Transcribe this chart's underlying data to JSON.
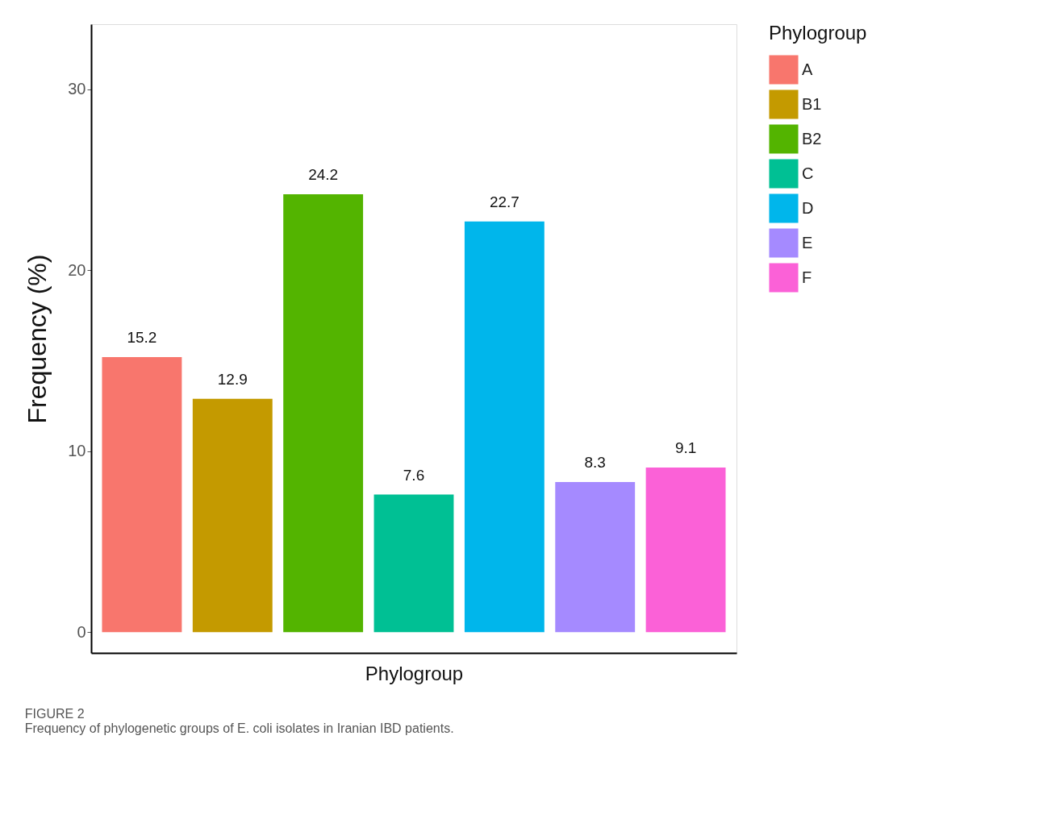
{
  "chart_data": {
    "type": "bar",
    "categories": [
      null,
      null,
      null,
      null,
      null,
      null,
      null
    ],
    "stacked": true,
    "series": [
      {
        "name": "A",
        "color": "#f8766d",
        "values": [
          15.2,
          null,
          null,
          null,
          null,
          null,
          null
        ]
      },
      {
        "name": "B1",
        "color": "#c49a00",
        "values": [
          null,
          12.9,
          null,
          null,
          null,
          null,
          null
        ]
      },
      {
        "name": "B2",
        "color": "#53b400",
        "values": [
          null,
          null,
          24.2,
          null,
          null,
          null,
          null
        ]
      },
      {
        "name": "C",
        "color": "#00c094",
        "values": [
          null,
          null,
          null,
          7.6,
          null,
          null,
          null
        ]
      },
      {
        "name": "D",
        "color": "#00b6eb",
        "values": [
          null,
          null,
          null,
          null,
          22.7,
          null,
          null
        ]
      },
      {
        "name": "E",
        "color": "#a58aff",
        "values": [
          null,
          null,
          null,
          null,
          null,
          8.3,
          null
        ]
      },
      {
        "name": "F",
        "color": "#fb61d7",
        "values": [
          null,
          null,
          null,
          null,
          null,
          null,
          9.1
        ]
      }
    ],
    "xlabel": "Phylogroup",
    "ylabel": "Frequency (%)",
    "legend_title": "Phylogroup",
    "ylim": [
      -1.15,
      33.6
    ],
    "yticks": [
      0,
      10,
      20,
      30
    ],
    "data_labels": true,
    "grid": false,
    "legend": "right",
    "tick_labels": "y",
    "annotations": [
      "FIGURE 2",
      "Frequency of phylogenetic groups of E. coli isolates in Iranian IBD patients."
    ]
  }
}
